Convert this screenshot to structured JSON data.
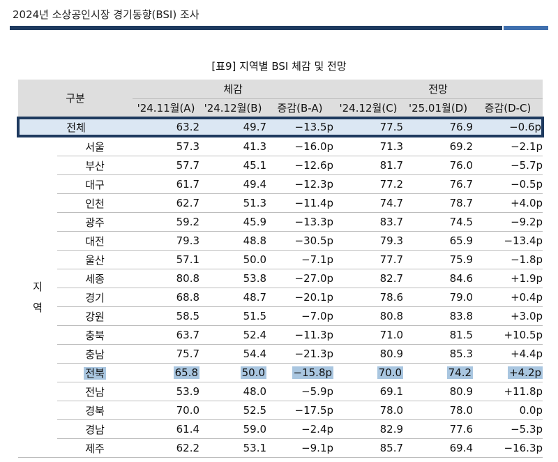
{
  "header": {
    "title": "2024년 소상공인시장 경기동향(BSI) 조사"
  },
  "table": {
    "title": "[표9] 지역별 BSI 체감 및 전망",
    "gubun_label": "구분",
    "group_experience": "체감",
    "group_outlook": "전망",
    "columns": [
      "'24.11월(A)",
      "'24.12월(B)",
      "증감(B-A)",
      "'24.12월(C)",
      "'25.01월(D)",
      "증감(D-C)"
    ],
    "total": {
      "label": "전체",
      "values": [
        "63.2",
        "49.7",
        "−13.5p",
        "77.5",
        "76.9",
        "−0.6p"
      ]
    },
    "region_group_label": "지\n역",
    "rows": [
      {
        "label": "서울",
        "values": [
          "57.3",
          "41.3",
          "−16.0p",
          "71.3",
          "69.2",
          "−2.1p"
        ]
      },
      {
        "label": "부산",
        "values": [
          "57.7",
          "45.1",
          "−12.6p",
          "81.7",
          "76.0",
          "−5.7p"
        ]
      },
      {
        "label": "대구",
        "values": [
          "61.7",
          "49.4",
          "−12.3p",
          "77.2",
          "76.7",
          "−0.5p"
        ]
      },
      {
        "label": "인천",
        "values": [
          "62.7",
          "51.3",
          "−11.4p",
          "74.7",
          "78.7",
          "+4.0p"
        ]
      },
      {
        "label": "광주",
        "values": [
          "59.2",
          "45.9",
          "−13.3p",
          "83.7",
          "74.5",
          "−9.2p"
        ]
      },
      {
        "label": "대전",
        "values": [
          "79.3",
          "48.8",
          "−30.5p",
          "79.3",
          "65.9",
          "−13.4p"
        ]
      },
      {
        "label": "울산",
        "values": [
          "57.1",
          "50.0",
          "−7.1p",
          "77.7",
          "75.9",
          "−1.8p"
        ]
      },
      {
        "label": "세종",
        "values": [
          "80.8",
          "53.8",
          "−27.0p",
          "82.7",
          "84.6",
          "+1.9p"
        ]
      },
      {
        "label": "경기",
        "values": [
          "68.8",
          "48.7",
          "−20.1p",
          "78.6",
          "79.0",
          "+0.4p"
        ]
      },
      {
        "label": "강원",
        "values": [
          "58.5",
          "51.5",
          "−7.0p",
          "80.8",
          "83.8",
          "+3.0p"
        ]
      },
      {
        "label": "충북",
        "values": [
          "63.7",
          "52.4",
          "−11.3p",
          "71.0",
          "81.5",
          "+10.5p"
        ]
      },
      {
        "label": "충남",
        "values": [
          "75.7",
          "54.4",
          "−21.3p",
          "80.9",
          "85.3",
          "+4.4p"
        ]
      },
      {
        "label": "전북",
        "values": [
          "65.8",
          "50.0",
          "−15.8p",
          "70.0",
          "74.2",
          "+4.2p"
        ],
        "highlight": true
      },
      {
        "label": "전남",
        "values": [
          "53.9",
          "48.0",
          "−5.9p",
          "69.1",
          "80.9",
          "+11.8p"
        ]
      },
      {
        "label": "경북",
        "values": [
          "70.0",
          "52.5",
          "−17.5p",
          "78.0",
          "78.0",
          "0.0p"
        ]
      },
      {
        "label": "경남",
        "values": [
          "61.4",
          "59.0",
          "−2.4p",
          "82.9",
          "77.6",
          "−5.3p"
        ]
      },
      {
        "label": "제주",
        "values": [
          "62.2",
          "53.1",
          "−9.1p",
          "85.7",
          "69.4",
          "−16.3p"
        ]
      }
    ]
  },
  "colors": {
    "header_bar": "#1e3a5f",
    "header_accent": "#3f6fae",
    "highlight": "#a9c6e0",
    "total_bg": "#dbe7f3"
  }
}
